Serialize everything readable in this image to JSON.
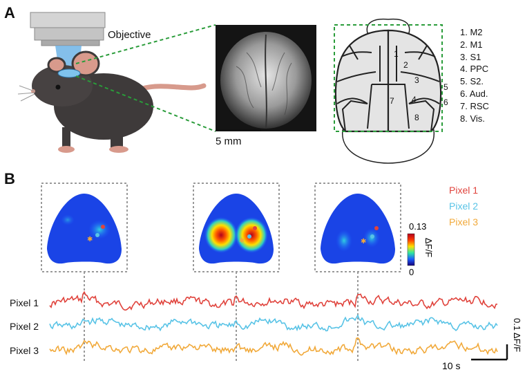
{
  "panel_a": {
    "letter": "A",
    "objective_label": "Objective",
    "scale_bar_label": "5 mm",
    "regions": [
      "1. M2",
      "2. M1",
      "3. S1",
      "4. PPC",
      "5. S2.",
      "6. Aud.",
      "7. RSC",
      "8. Vis."
    ],
    "atlas_numbers": [
      "1",
      "2",
      "3",
      "4",
      "5",
      "6",
      "7",
      "8"
    ]
  },
  "panel_b": {
    "letter": "B",
    "colorbar": {
      "max": "0.13",
      "min": "0",
      "label": "ΔF/F"
    },
    "pixels": [
      {
        "name": "Pixel 1",
        "color": "#e0433c"
      },
      {
        "name": "Pixel 2",
        "color": "#58c3e6"
      },
      {
        "name": "Pixel 3",
        "color": "#f1a93a"
      }
    ],
    "scale_time": "10 s",
    "scale_amplitude": "0.1 ΔF/F",
    "trace_labels": [
      "Pixel 1",
      "Pixel 2",
      "Pixel 3"
    ]
  }
}
